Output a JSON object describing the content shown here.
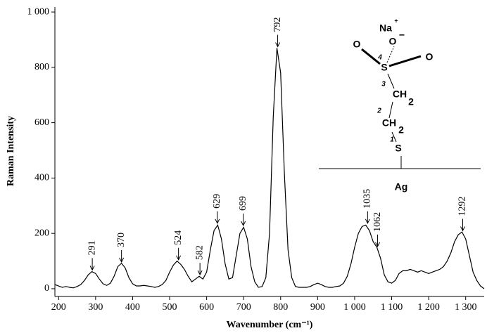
{
  "chart_data": {
    "type": "line",
    "xlabel": "Wavenumber (cm⁻¹)",
    "ylabel": "Raman Intensity",
    "xlim": [
      190,
      1350
    ],
    "ylim": [
      -28,
      1018
    ],
    "xticks": [
      200,
      300,
      400,
      500,
      600,
      700,
      800,
      900,
      {
        "value": 1000,
        "label": "1 000"
      },
      {
        "value": 1100,
        "label": "1 100"
      },
      {
        "value": 1200,
        "label": "1 200"
      },
      {
        "value": 1300,
        "label": "1 300"
      }
    ],
    "yticks": [
      0,
      200,
      400,
      600,
      800,
      {
        "value": 1000,
        "label": "1 000"
      }
    ],
    "series": [
      {
        "color": "#000000",
        "x": [
          190,
          200,
          210,
          220,
          230,
          240,
          250,
          260,
          270,
          280,
          290,
          300,
          310,
          320,
          330,
          340,
          350,
          360,
          370,
          380,
          390,
          400,
          410,
          420,
          430,
          440,
          450,
          460,
          470,
          480,
          490,
          500,
          510,
          520,
          530,
          540,
          550,
          560,
          570,
          580,
          590,
          600,
          610,
          620,
          630,
          640,
          650,
          660,
          670,
          680,
          690,
          700,
          710,
          720,
          730,
          740,
          750,
          760,
          770,
          780,
          790,
          800,
          810,
          820,
          830,
          840,
          850,
          860,
          870,
          880,
          890,
          900,
          910,
          920,
          930,
          940,
          950,
          960,
          970,
          980,
          990,
          1000,
          1010,
          1020,
          1030,
          1040,
          1050,
          1060,
          1070,
          1080,
          1090,
          1100,
          1110,
          1120,
          1130,
          1140,
          1150,
          1160,
          1170,
          1180,
          1190,
          1200,
          1210,
          1220,
          1230,
          1240,
          1250,
          1260,
          1270,
          1280,
          1290,
          1300,
          1310,
          1320,
          1330,
          1340,
          1350
        ],
        "values": [
          15,
          10,
          5,
          8,
          5,
          3,
          8,
          15,
          30,
          50,
          62,
          55,
          35,
          18,
          12,
          20,
          45,
          80,
          92,
          75,
          40,
          18,
          10,
          10,
          12,
          10,
          8,
          5,
          8,
          15,
          30,
          60,
          85,
          100,
          88,
          70,
          45,
          25,
          35,
          45,
          35,
          60,
          140,
          210,
          230,
          180,
          90,
          35,
          40,
          120,
          200,
          222,
          180,
          80,
          25,
          5,
          8,
          40,
          200,
          620,
          870,
          780,
          420,
          140,
          40,
          8,
          5,
          5,
          5,
          8,
          15,
          20,
          15,
          8,
          5,
          5,
          8,
          10,
          20,
          45,
          90,
          150,
          200,
          225,
          230,
          210,
          170,
          150,
          110,
          50,
          25,
          20,
          30,
          55,
          65,
          65,
          70,
          65,
          60,
          65,
          60,
          55,
          60,
          65,
          70,
          80,
          100,
          130,
          170,
          195,
          205,
          180,
          120,
          60,
          30,
          10,
          0
        ]
      }
    ],
    "peaks": [
      {
        "x": 291,
        "y": 65
      },
      {
        "x": 370,
        "y": 94
      },
      {
        "x": 524,
        "y": 102
      },
      {
        "x": 582,
        "y": 48
      },
      {
        "x": 629,
        "y": 234
      },
      {
        "x": 699,
        "y": 226
      },
      {
        "x": 792,
        "y": 872
      },
      {
        "x": 1035,
        "y": 234
      },
      {
        "x": 1062,
        "y": 150
      },
      {
        "x": 1292,
        "y": 207
      }
    ]
  },
  "inset": {
    "cation": "Na",
    "cation_charge": "+",
    "oxygen": "O",
    "anion_charge": "−",
    "sulfur": "S",
    "methylene": "CH",
    "subscript": "2",
    "carbon_numbers": [
      "1",
      "2",
      "3",
      "4"
    ],
    "surface": "Ag"
  }
}
